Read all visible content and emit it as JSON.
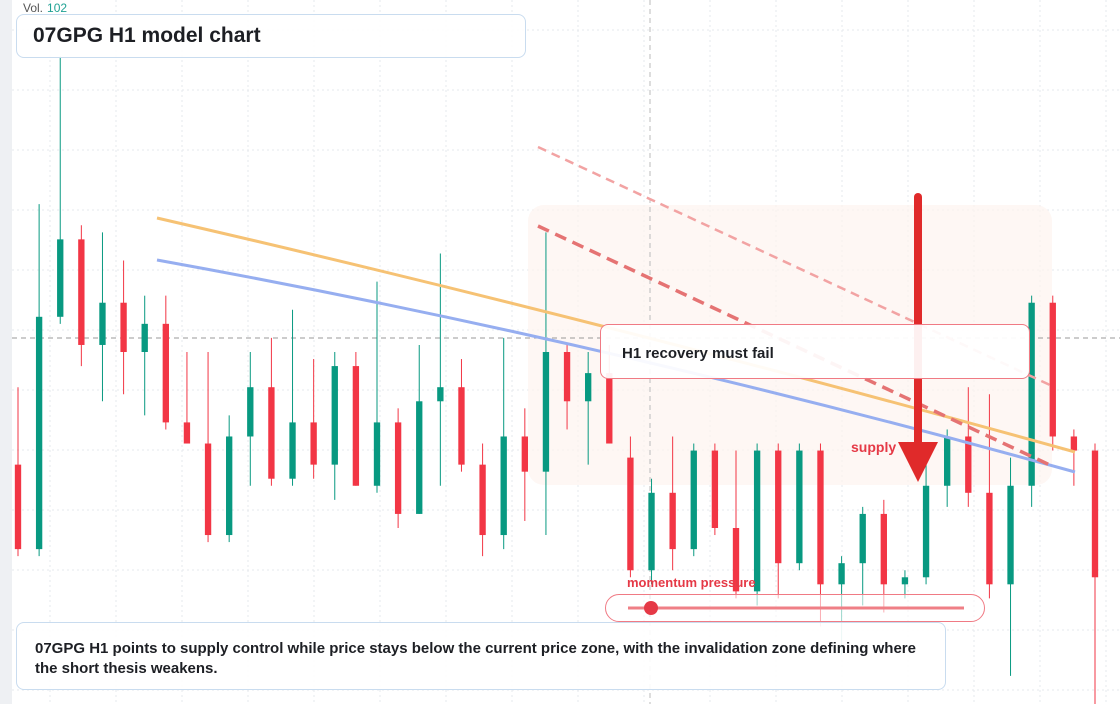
{
  "chart_data": {
    "type": "candlestick",
    "title": "07GPG H1 model chart",
    "volume_label": "Vol.",
    "volume_value": 102,
    "open": [
      134,
      122,
      155,
      166,
      151,
      157,
      150,
      154,
      140,
      137,
      124,
      138,
      145,
      132,
      140,
      134,
      148,
      131,
      140,
      127,
      143,
      145,
      134,
      124,
      138,
      133,
      150,
      143,
      147,
      135,
      119,
      130,
      122,
      136,
      125,
      116,
      136,
      120,
      136,
      117,
      120,
      127,
      117,
      118,
      131,
      138,
      130,
      117,
      131,
      157,
      138,
      136
    ],
    "high": [
      145,
      171,
      192,
      168,
      167,
      163,
      158,
      158,
      150,
      150,
      141,
      150,
      152,
      156,
      149,
      150,
      150,
      160,
      142,
      151,
      164,
      149,
      137,
      152,
      142,
      167,
      151,
      150,
      151,
      138,
      132,
      138,
      137,
      137,
      136,
      137,
      137,
      137,
      137,
      121,
      128,
      129,
      119,
      134,
      139,
      145,
      144,
      135,
      158,
      158,
      139,
      137
    ],
    "low": [
      121,
      121,
      154,
      148,
      143,
      144,
      141,
      139,
      137,
      123,
      123,
      131,
      131,
      131,
      132,
      129,
      131,
      130,
      125,
      127,
      131,
      133,
      121,
      122,
      126,
      124,
      139,
      134,
      137,
      118,
      117,
      119,
      121,
      124,
      115,
      114,
      115,
      119,
      111,
      107,
      114,
      113,
      115,
      117,
      128,
      128,
      115,
      104,
      128,
      136,
      131,
      100
    ],
    "close": [
      122,
      155,
      166,
      151,
      157,
      150,
      154,
      140,
      137,
      124,
      138,
      145,
      132,
      140,
      134,
      148,
      131,
      140,
      127,
      143,
      145,
      134,
      124,
      138,
      133,
      150,
      143,
      147,
      137,
      119,
      130,
      122,
      136,
      125,
      116,
      136,
      120,
      136,
      117,
      120,
      127,
      117,
      118,
      131,
      138,
      130,
      117,
      131,
      157,
      138,
      136,
      118
    ],
    "up_color": "#089981",
    "down_color": "#f23645",
    "ylim": [
      100,
      200
    ],
    "grid": true,
    "annotations": [
      "H1 recovery must fail",
      "supply",
      "momentum pressure"
    ],
    "description": "07GPG H1 points to supply control while price stays below the current price zone, with the invalidation zone defining where the short thesis weakens."
  }
}
